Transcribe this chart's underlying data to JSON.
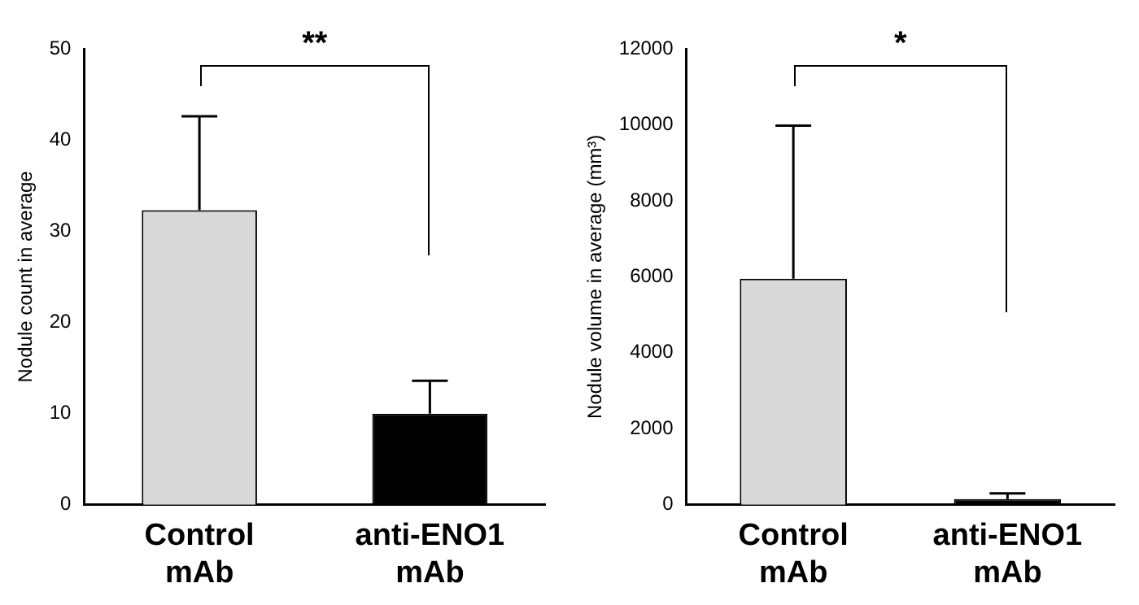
{
  "chart_data": [
    {
      "type": "bar",
      "ylabel": "Nodule count in average",
      "categories": [
        "Control mAb",
        "anti-ENO1 mAb"
      ],
      "values": [
        32.3,
        10
      ],
      "colors": [
        "#d9d9d9",
        "#000000"
      ],
      "errors": [
        [
          32.3,
          42.6
        ],
        [
          10,
          13.6
        ]
      ],
      "ylim": [
        0,
        50
      ],
      "yticks": [
        0,
        10,
        20,
        30,
        40,
        50
      ],
      "grid": false,
      "legend": false,
      "annotations": [
        "**"
      ]
    },
    {
      "type": "bar",
      "ylabel": "Nodule volume in average (mm³)",
      "categories": [
        "Control mAb",
        "anti-ENO1 mAb"
      ],
      "values": [
        5950,
        150
      ],
      "colors": [
        "#d9d9d9",
        "#000000"
      ],
      "errors": [
        [
          5950,
          9980
        ],
        [
          150,
          300
        ]
      ],
      "ylim": [
        0,
        12000
      ],
      "yticks": [
        0,
        2000,
        4000,
        6000,
        8000,
        10000,
        12000
      ],
      "grid": false,
      "legend": false,
      "annotations": [
        "*"
      ]
    }
  ]
}
